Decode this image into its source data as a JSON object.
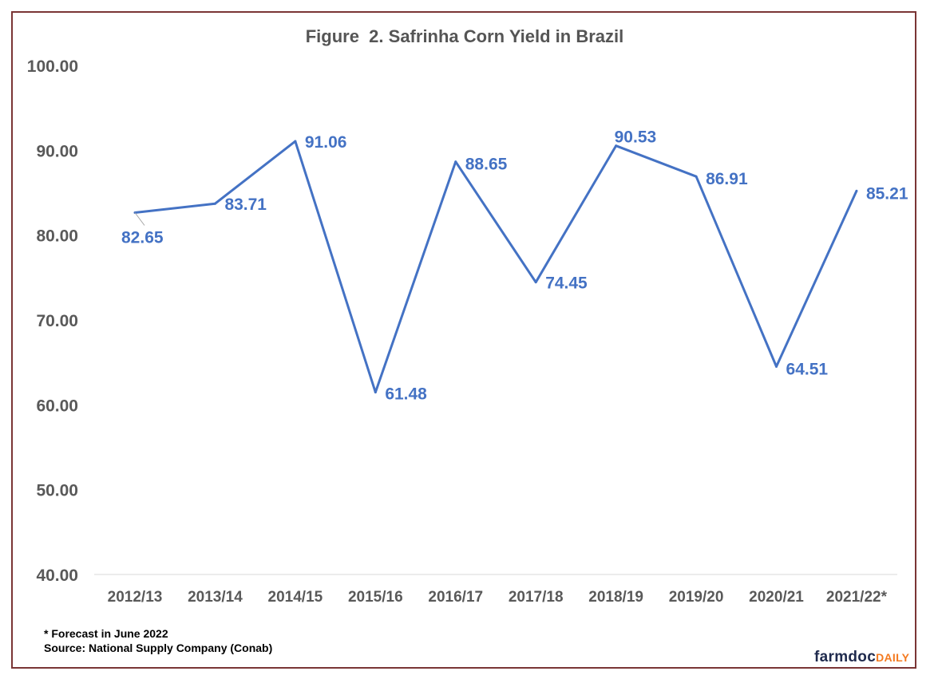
{
  "chart_data": {
    "type": "line",
    "title": "Figure  2. Safrinha Corn Yield in Brazil",
    "xlabel": "",
    "ylabel": "",
    "categories": [
      "2012/13",
      "2013/14",
      "2014/15",
      "2015/16",
      "2016/17",
      "2017/18",
      "2018/19",
      "2019/20",
      "2020/21",
      "2021/22*"
    ],
    "series": [
      {
        "values": [
          82.65,
          83.71,
          91.06,
          61.48,
          88.65,
          74.45,
          90.53,
          86.91,
          64.51,
          85.21
        ]
      }
    ],
    "data_labels": [
      "82.65",
      "83.71",
      "91.06",
      "61.48",
      "88.65",
      "74.45",
      "90.53",
      "86.91",
      "64.51",
      "85.21"
    ],
    "ylim": [
      40,
      100
    ],
    "yticks": [
      "40.00",
      "50.00",
      "60.00",
      "70.00",
      "80.00",
      "90.00",
      "100.00"
    ],
    "grid": false,
    "line_color": "#4472c4",
    "border_color": "#7a3535"
  },
  "footnotes": {
    "forecast": "* Forecast in June 2022",
    "source": "Source: National Supply Company (Conab)"
  },
  "logo": {
    "part1": "farmdoc",
    "part2": "DAILY"
  }
}
